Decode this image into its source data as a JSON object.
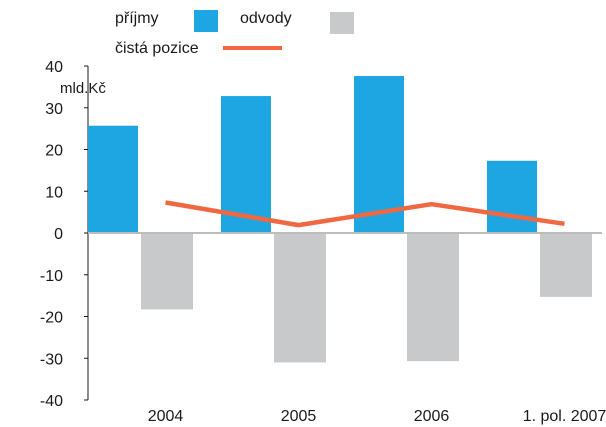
{
  "chart_data": {
    "type": "bar",
    "categories": [
      "2004",
      "2005",
      "2006",
      "1. pol. 2007"
    ],
    "series": [
      {
        "name": "příjmy",
        "kind": "bar",
        "color": "#1ea6e3",
        "values": [
          25.7,
          32.8,
          37.6,
          17.3
        ]
      },
      {
        "name": "odvody",
        "kind": "bar",
        "color": "#c8c9cb",
        "values": [
          -18.3,
          -31.0,
          -30.7,
          -15.3
        ]
      },
      {
        "name": "čistá pozice",
        "kind": "line",
        "color": "#ef6842",
        "values": [
          7.3,
          1.9,
          6.9,
          2.2
        ]
      }
    ],
    "ylabel": "mld.Kč",
    "ylim": [
      -40,
      40
    ],
    "yticks": [
      40,
      30,
      20,
      10,
      0,
      -10,
      -20,
      -30,
      -40
    ],
    "grid": false,
    "legend_position": "top-left"
  }
}
